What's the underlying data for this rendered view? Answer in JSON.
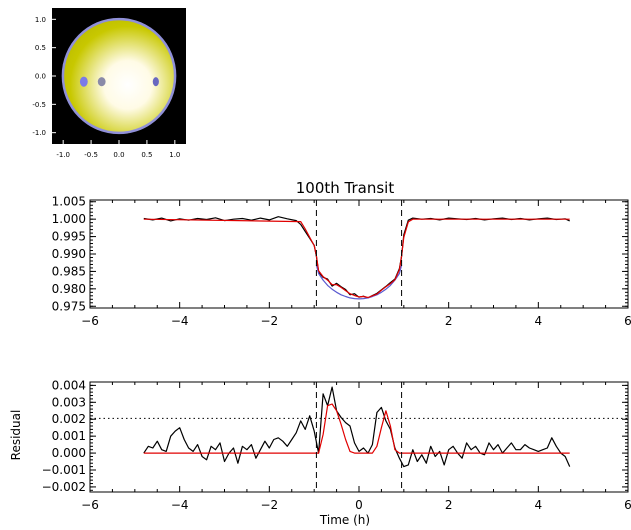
{
  "chart_data": [
    {
      "type": "scatter",
      "panel": "stellar-disk",
      "xlim": [
        -1.2,
        1.2
      ],
      "ylim": [
        -1.2,
        1.2
      ],
      "x_ticks": [
        "-1.0",
        "-0.5",
        "0.0",
        "0.5",
        "1.0"
      ],
      "y_ticks": [
        "-1.0",
        "-0.5",
        "0.0",
        "0.5",
        "1.0"
      ],
      "star": {
        "x": 0,
        "y": 0,
        "radius": 1.0,
        "center_color": "#ffffff",
        "limb_color": "#c8c800",
        "edge_color": "#9090d8"
      },
      "spots": [
        {
          "x": -0.63,
          "y": -0.1,
          "rx": 0.07,
          "ry": 0.09,
          "color": "#7a7ae8"
        },
        {
          "x": -0.31,
          "y": -0.1,
          "rx": 0.07,
          "ry": 0.08,
          "color": "#8a8aa8"
        },
        {
          "x": 0.66,
          "y": -0.1,
          "rx": 0.055,
          "ry": 0.08,
          "color": "#6868c0"
        }
      ],
      "background": "#000000"
    },
    {
      "type": "line",
      "panel": "light-curve",
      "title": "100th Transit",
      "xlabel": "",
      "ylabel": "",
      "xlim": [
        -6,
        6
      ],
      "ylim": [
        0.9745,
        1.0055
      ],
      "x_ticks": [
        "−6",
        "−4",
        "−2",
        "0",
        "2",
        "4",
        "6"
      ],
      "y_ticks": [
        "0.975",
        "0.980",
        "0.985",
        "0.990",
        "0.995",
        "1.000",
        "1.005"
      ],
      "vlines": [
        -0.95,
        0.95
      ],
      "series": [
        {
          "color": "#000000",
          "x": [
            -4.8,
            -4.6,
            -4.4,
            -4.2,
            -4.0,
            -3.8,
            -3.6,
            -3.4,
            -3.2,
            -3.0,
            -2.8,
            -2.6,
            -2.4,
            -2.2,
            -2.0,
            -1.8,
            -1.6,
            -1.4,
            -1.3,
            -1.2,
            -1.1,
            -1.0,
            -0.95,
            -0.9,
            -0.8,
            -0.7,
            -0.6,
            -0.5,
            -0.4,
            -0.3,
            -0.2,
            -0.1,
            0.0,
            0.1,
            0.2,
            0.3,
            0.4,
            0.5,
            0.6,
            0.7,
            0.8,
            0.9,
            0.95,
            1.0,
            1.1,
            1.2,
            1.4,
            1.6,
            1.8,
            2.0,
            2.2,
            2.4,
            2.6,
            2.8,
            3.0,
            3.2,
            3.4,
            3.6,
            3.8,
            4.0,
            4.2,
            4.4,
            4.6,
            4.7
          ],
          "y": [
            1.0002,
            0.9998,
            1.0003,
            0.9995,
            1.0001,
            0.9997,
            1.0002,
            0.9999,
            1.0004,
            0.9996,
            1.0,
            1.0002,
            0.9997,
            1.0003,
            0.9998,
            1.0007,
            1.0001,
            0.9996,
            0.9985,
            0.9965,
            0.9945,
            0.9925,
            0.9893,
            0.9848,
            0.9833,
            0.9828,
            0.9808,
            0.9816,
            0.9806,
            0.9798,
            0.9783,
            0.9786,
            0.9776,
            0.9779,
            0.9774,
            0.9781,
            0.9787,
            0.9797,
            0.9807,
            0.9818,
            0.9828,
            0.9858,
            0.9893,
            0.9955,
            0.9997,
            1.0003,
            1.0,
            1.0002,
            0.9998,
            1.0003,
            1.0001,
            0.9999,
            1.0002,
            0.9998,
            1.0001,
            1.0003,
            0.9999,
            1.0002,
            0.9998,
            1.0001,
            1.0003,
            0.9999,
            1.0001,
            0.9995
          ]
        },
        {
          "color": "#5a5ad0",
          "x": [
            -0.95,
            -0.9,
            -0.8,
            -0.7,
            -0.6,
            -0.5,
            -0.4,
            -0.3,
            -0.2,
            -0.1,
            0.0,
            0.1,
            0.2,
            0.3,
            0.4,
            0.5,
            0.6,
            0.7,
            0.8,
            0.9,
            0.95
          ],
          "y": [
            0.9868,
            0.9844,
            0.9825,
            0.981,
            0.9799,
            0.979,
            0.9783,
            0.9778,
            0.9774,
            0.9772,
            0.9771,
            0.9772,
            0.9774,
            0.9778,
            0.9783,
            0.979,
            0.9799,
            0.981,
            0.9825,
            0.9844,
            0.9868
          ]
        },
        {
          "color": "#e00000",
          "x": [
            -4.8,
            -1.3,
            -1.2,
            -1.1,
            -1.0,
            -0.95,
            -0.9,
            -0.8,
            -0.7,
            -0.6,
            -0.5,
            -0.4,
            -0.3,
            -0.2,
            -0.1,
            0.0,
            0.1,
            0.2,
            0.3,
            0.4,
            0.5,
            0.6,
            0.7,
            0.8,
            0.9,
            0.95,
            1.0,
            1.1,
            1.2,
            4.7
          ],
          "y": [
            1.0,
            0.9993,
            0.9972,
            0.9948,
            0.9924,
            0.9895,
            0.9852,
            0.9835,
            0.9825,
            0.9812,
            0.9812,
            0.9804,
            0.9795,
            0.9786,
            0.9781,
            0.9777,
            0.9778,
            0.9775,
            0.978,
            0.9785,
            0.9796,
            0.9806,
            0.9815,
            0.9826,
            0.9855,
            0.9895,
            0.9948,
            0.9992,
            1.0,
            1.0
          ]
        }
      ]
    },
    {
      "type": "line",
      "panel": "residual",
      "title": "",
      "xlabel": "Time (h)",
      "ylabel": "Residual",
      "xlim": [
        -6,
        6
      ],
      "ylim": [
        -0.0023,
        0.0042
      ],
      "x_ticks": [
        "−6",
        "−4",
        "−2",
        "0",
        "2",
        "4",
        "6"
      ],
      "y_ticks": [
        "−0.002",
        "−0.001",
        "0.000",
        "0.001",
        "0.002",
        "0.003",
        "0.004"
      ],
      "vlines": [
        -0.95,
        0.95
      ],
      "hline_dotted": 0.00205,
      "series": [
        {
          "color": "#000000",
          "x": [
            -4.8,
            -4.7,
            -4.6,
            -4.5,
            -4.4,
            -4.3,
            -4.2,
            -4.1,
            -4.0,
            -3.9,
            -3.8,
            -3.7,
            -3.6,
            -3.5,
            -3.4,
            -3.3,
            -3.2,
            -3.1,
            -3.0,
            -2.9,
            -2.8,
            -2.7,
            -2.6,
            -2.5,
            -2.4,
            -2.3,
            -2.2,
            -2.1,
            -2.0,
            -1.9,
            -1.8,
            -1.7,
            -1.6,
            -1.5,
            -1.4,
            -1.3,
            -1.2,
            -1.1,
            -1.0,
            -0.9,
            -0.8,
            -0.7,
            -0.6,
            -0.5,
            -0.4,
            -0.3,
            -0.2,
            -0.1,
            0.0,
            0.1,
            0.2,
            0.3,
            0.4,
            0.5,
            0.6,
            0.7,
            0.8,
            0.9,
            1.0,
            1.1,
            1.2,
            1.3,
            1.4,
            1.5,
            1.6,
            1.7,
            1.8,
            1.9,
            2.0,
            2.1,
            2.2,
            2.3,
            2.4,
            2.5,
            2.6,
            2.7,
            2.8,
            2.9,
            3.0,
            3.1,
            3.2,
            3.3,
            3.4,
            3.5,
            3.6,
            3.7,
            3.8,
            3.9,
            4.0,
            4.1,
            4.2,
            4.3,
            4.4,
            4.5,
            4.6,
            4.7
          ],
          "y": [
            0.0,
            0.0004,
            0.0003,
            0.0007,
            0.0002,
            0.0001,
            0.001,
            0.0013,
            0.0015,
            0.0008,
            0.0003,
            0.0001,
            0.0005,
            -0.0002,
            -0.0004,
            0.0004,
            0.0002,
            0.0006,
            -0.0005,
            0.0,
            0.0003,
            -0.0006,
            0.0004,
            0.0002,
            0.0005,
            -0.0003,
            0.0002,
            0.0007,
            0.0003,
            0.0008,
            0.0009,
            0.0007,
            0.0004,
            0.0008,
            0.0012,
            0.0019,
            0.0014,
            0.0022,
            0.0013,
            0.0,
            0.0035,
            0.0028,
            0.0039,
            0.0025,
            0.0021,
            0.0018,
            0.0016,
            0.0006,
            0.0001,
            0.0003,
            0.0,
            0.0005,
            0.0024,
            0.0027,
            0.0019,
            0.0014,
            0.0003,
            -0.0003,
            -0.0008,
            -0.0007,
            0.0002,
            -0.0005,
            -0.0001,
            -0.0006,
            0.0004,
            -0.0002,
            0.0001,
            -0.0007,
            0.0002,
            0.0004,
            0.0,
            -0.0003,
            0.0006,
            0.0002,
            0.0004,
            0.0,
            -0.0001,
            0.0006,
            0.0002,
            0.0005,
            0.0,
            0.0003,
            0.0006,
            0.0002,
            0.0002,
            0.0005,
            0.0003,
            0.0002,
            0.0001,
            0.0002,
            0.0003,
            0.0009,
            0.0004,
            0.0,
            -0.0002,
            -0.0008
          ]
        },
        {
          "color": "#e00000",
          "x": [
            -4.8,
            -1.0,
            -0.9,
            -0.8,
            -0.7,
            -0.6,
            -0.5,
            -0.4,
            -0.3,
            -0.2,
            -0.1,
            0.0,
            0.1,
            0.2,
            0.3,
            0.4,
            0.5,
            0.6,
            0.7,
            0.8,
            0.9,
            1.0,
            4.7
          ],
          "y": [
            0.0,
            0.0,
            0.0,
            0.0011,
            0.0028,
            0.0029,
            0.0025,
            0.0017,
            0.0008,
            0.0001,
            0.0,
            0.0,
            0.0,
            0.0,
            0.0,
            0.0004,
            0.0015,
            0.0025,
            0.0016,
            0.0002,
            0.0,
            0.0,
            0.0
          ]
        }
      ]
    }
  ]
}
